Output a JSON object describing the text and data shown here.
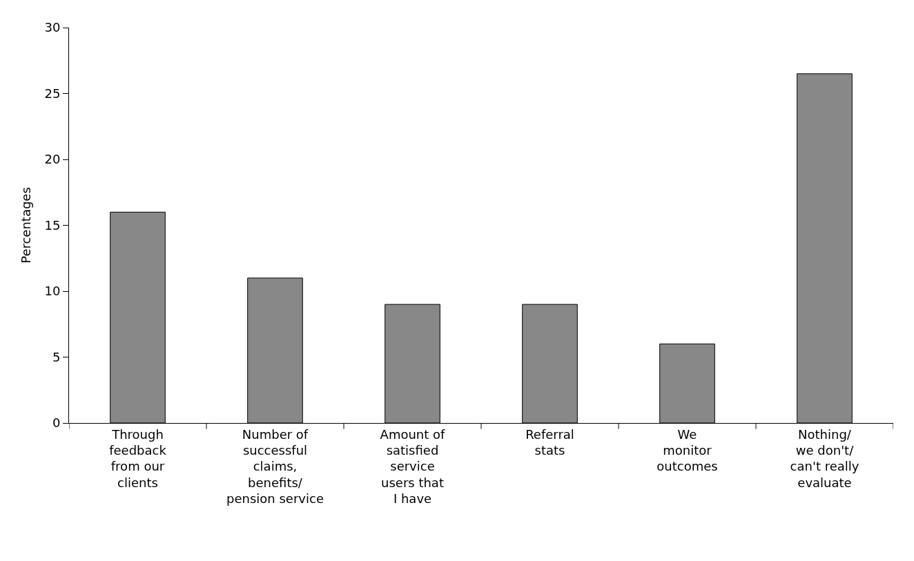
{
  "chart_data": {
    "type": "bar",
    "ylabel": "Percentages",
    "categories": [
      "Through\nfeedback\nfrom our\nclients",
      "Number of\nsuccessful\nclaims,\nbenefits/\npension service",
      "Amount of\nsatisfied\nservice\nusers that\nI have",
      "Referral\nstats",
      "We\nmonitor\noutcomes",
      "Nothing/\nwe don't/\ncan't really\nevaluate"
    ],
    "values": [
      16,
      11,
      9,
      9,
      6,
      26.5
    ],
    "color": "#888888",
    "ylim": [
      0,
      30
    ],
    "yticks": [
      0,
      5,
      10,
      15,
      20,
      25,
      30
    ]
  }
}
